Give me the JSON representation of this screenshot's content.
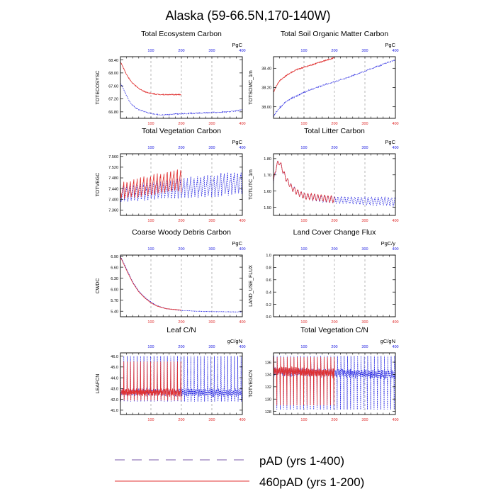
{
  "figure": {
    "title": "Alaska (59-66.5N,170-140W)",
    "legend": [
      {
        "label": "pAD (yrs 1-400)",
        "color": "#2020e0",
        "style": "dashed"
      },
      {
        "label": "460pAD (yrs 1-200)",
        "color": "#e03030",
        "style": "solid"
      }
    ],
    "top_axis_color": "#2020e0",
    "bottom_axis_color": "#e03030"
  },
  "chart_data": [
    {
      "type": "line",
      "title": "Total Ecosystem Carbon",
      "ylabel": "TOTECOSYSC",
      "units": "PgC",
      "xlim": [
        0,
        400
      ],
      "ylim": [
        66.6,
        68.5
      ],
      "yticks": [
        66.8,
        67.2,
        67.6,
        68.0,
        68.4
      ],
      "ytick_labels": [
        "66.80",
        "67.20",
        "67.60",
        "68.00",
        "68.40"
      ],
      "xticks_top": [
        100,
        200,
        300,
        400
      ],
      "xticks_bottom": [
        100,
        200,
        300,
        400
      ],
      "series": [
        {
          "name": "pAD (yrs 1-400)",
          "color": "#2020e0",
          "x": [
            0,
            10,
            20,
            30,
            40,
            50,
            60,
            70,
            80,
            100,
            120,
            140,
            160,
            200,
            250,
            300,
            350,
            400
          ],
          "y": [
            67.68,
            67.5,
            67.3,
            67.12,
            67.0,
            66.92,
            66.87,
            66.84,
            66.8,
            66.75,
            66.72,
            66.71,
            66.72,
            66.74,
            66.76,
            66.78,
            66.8,
            66.86
          ],
          "noise": 0.015
        },
        {
          "name": "460pAD (yrs 1-200)",
          "color": "#e03030",
          "x": [
            0,
            10,
            20,
            30,
            40,
            60,
            80,
            100,
            120,
            150,
            180,
            200
          ],
          "y": [
            68.34,
            68.15,
            67.95,
            67.8,
            67.68,
            67.52,
            67.42,
            67.37,
            67.34,
            67.33,
            67.33,
            67.33
          ],
          "noise": 0.015
        }
      ]
    },
    {
      "type": "line",
      "title": "Total Soil Organic Matter Carbon",
      "ylabel": "TOTSOMC_1m",
      "units": "PgC",
      "xlim": [
        0,
        400
      ],
      "ylim": [
        37.88,
        38.52
      ],
      "yticks": [
        38.0,
        38.2,
        38.4
      ],
      "ytick_labels": [
        "38.00",
        "38.20",
        "38.40"
      ],
      "xticks_top": [
        100,
        200,
        300,
        400
      ],
      "xticks_bottom": [
        100,
        200,
        300,
        400
      ],
      "series": [
        {
          "name": "pAD (yrs 1-400)",
          "color": "#2020e0",
          "x": [
            0,
            10,
            20,
            40,
            60,
            80,
            100,
            150,
            200,
            250,
            300,
            350,
            400
          ],
          "y": [
            37.9,
            37.95,
            37.99,
            38.05,
            38.09,
            38.12,
            38.15,
            38.21,
            38.26,
            38.31,
            38.37,
            38.43,
            38.49
          ],
          "noise": 0.006
        },
        {
          "name": "460pAD (yrs 1-200)",
          "color": "#e03030",
          "x": [
            0,
            10,
            20,
            40,
            60,
            80,
            100,
            120,
            150,
            180,
            200
          ],
          "y": [
            38.15,
            38.22,
            38.27,
            38.32,
            38.36,
            38.39,
            38.41,
            38.43,
            38.46,
            38.49,
            38.51
          ],
          "noise": 0.006
        }
      ]
    },
    {
      "type": "line",
      "title": "Total Vegetation Carbon",
      "ylabel": "TOTVEGC",
      "units": "PgC",
      "xlim": [
        0,
        400
      ],
      "ylim": [
        7.34,
        7.57
      ],
      "yticks": [
        7.36,
        7.4,
        7.44,
        7.48,
        7.52,
        7.56
      ],
      "ytick_labels": [
        "7.360",
        "7.400",
        "7.440",
        "7.480",
        "7.520",
        "7.560"
      ],
      "xticks_top": [
        100,
        200,
        300,
        400
      ],
      "xticks_bottom": [
        100,
        200,
        300,
        400
      ],
      "series": [
        {
          "name": "pAD (yrs 1-400)",
          "color": "#2020e0",
          "x": [
            0,
            400
          ],
          "y": [
            7.42,
            7.46
          ],
          "osc": {
            "period": 11,
            "amp": [
              0.06,
              0.085
            ],
            "sharp": true
          }
        },
        {
          "name": "460pAD (yrs 1-200)",
          "color": "#e03030",
          "x": [
            0,
            200
          ],
          "y": [
            7.43,
            7.47
          ],
          "osc": {
            "period": 11,
            "amp": [
              0.06,
              0.085
            ],
            "sharp": true
          }
        }
      ]
    },
    {
      "type": "line",
      "title": "Total Litter Carbon",
      "ylabel": "TOTLITC_1m",
      "units": "PgC",
      "xlim": [
        0,
        400
      ],
      "ylim": [
        1.45,
        1.83
      ],
      "yticks": [
        1.5,
        1.6,
        1.7,
        1.8
      ],
      "ytick_labels": [
        "1.50",
        "1.60",
        "1.70",
        "1.80"
      ],
      "xticks_top": [
        100,
        200,
        300,
        400
      ],
      "xticks_bottom": [
        100,
        200,
        300,
        400
      ],
      "series": [
        {
          "name": "pAD (yrs 1-400)",
          "color": "#2020e0",
          "x": [
            0,
            10,
            20,
            30,
            40,
            60,
            80,
            100,
            150,
            200,
            400
          ],
          "y": [
            1.65,
            1.76,
            1.78,
            1.73,
            1.68,
            1.62,
            1.59,
            1.57,
            1.555,
            1.545,
            1.535
          ],
          "osc": {
            "period": 11,
            "amp": [
              0.03,
              0.05
            ],
            "sharp": false
          }
        },
        {
          "name": "460pAD (yrs 1-200)",
          "color": "#e03030",
          "x": [
            0,
            10,
            20,
            30,
            40,
            60,
            80,
            100,
            150,
            200
          ],
          "y": [
            1.66,
            1.76,
            1.78,
            1.73,
            1.68,
            1.62,
            1.59,
            1.57,
            1.56,
            1.55
          ],
          "osc": {
            "period": 11,
            "amp": [
              0.03,
              0.04
            ],
            "sharp": false
          }
        }
      ]
    },
    {
      "type": "line",
      "title": "Coarse Woody Debris Carbon",
      "ylabel": "CWDC",
      "units": "PgC",
      "xlim": [
        0,
        400
      ],
      "ylim": [
        5.25,
        6.93
      ],
      "yticks": [
        5.4,
        5.7,
        6.0,
        6.3,
        6.6,
        6.9
      ],
      "ytick_labels": [
        "5.40",
        "5.70",
        "6.00",
        "6.30",
        "6.60",
        "6.90"
      ],
      "xticks_top": [
        100,
        200,
        300,
        400
      ],
      "xticks_bottom": [
        100,
        200,
        300,
        400
      ],
      "series": [
        {
          "name": "pAD (yrs 1-400)",
          "color": "#2020e0",
          "x": [
            0,
            20,
            40,
            60,
            80,
            100,
            120,
            150,
            200,
            250,
            300,
            400
          ],
          "y": [
            6.9,
            6.55,
            6.2,
            5.95,
            5.78,
            5.65,
            5.55,
            5.47,
            5.42,
            5.4,
            5.39,
            5.38
          ],
          "noise": 0.006
        },
        {
          "name": "460pAD (yrs 1-200)",
          "color": "#e03030",
          "x": [
            0,
            20,
            40,
            60,
            80,
            100,
            120,
            150,
            200
          ],
          "y": [
            6.88,
            6.52,
            6.18,
            5.93,
            5.76,
            5.63,
            5.54,
            5.47,
            5.43
          ],
          "noise": 0.006
        }
      ]
    },
    {
      "type": "line",
      "title": "Land Cover Change Flux",
      "ylabel": "LAND_USE_FLUX",
      "units": "PgC/y",
      "xlim": [
        0,
        400
      ],
      "ylim": [
        0.0,
        1.0
      ],
      "yticks": [
        0.0,
        0.2,
        0.4,
        0.6,
        0.8,
        1.0
      ],
      "ytick_labels": [
        "0.0",
        "0.2",
        "0.4",
        "0.6",
        "0.8",
        "1.0"
      ],
      "xticks_top": [
        100,
        200,
        300,
        400
      ],
      "xticks_bottom": [
        100,
        200,
        300,
        400
      ],
      "series": []
    },
    {
      "type": "line",
      "title": "Leaf C/N",
      "ylabel": "LEAFCN",
      "units": "gC/gN",
      "xlim": [
        0,
        400
      ],
      "ylim": [
        40.6,
        46.3
      ],
      "yticks": [
        41.0,
        42.0,
        43.0,
        44.0,
        45.0,
        46.0
      ],
      "ytick_labels": [
        "41.0",
        "42.0",
        "43.0",
        "44.0",
        "45.0",
        "46.0"
      ],
      "xticks_top": [
        100,
        200,
        300,
        400
      ],
      "xticks_bottom": [
        100,
        200,
        300,
        400
      ],
      "series": [
        {
          "name": "pAD (yrs 1-400)",
          "color": "#2020e0",
          "x": [
            0,
            400
          ],
          "y": [
            42.7,
            42.6
          ],
          "spike": {
            "period": 11,
            "high": 46.0,
            "low": 41.8,
            "base_amp": 0.6
          }
        },
        {
          "name": "460pAD (yrs 1-200)",
          "color": "#e03030",
          "x": [
            0,
            200
          ],
          "y": [
            42.7,
            42.6
          ],
          "spike": {
            "period": 11,
            "high": 45.5,
            "low": 41.9,
            "base_amp": 0.6
          }
        }
      ]
    },
    {
      "type": "line",
      "title": "Total Vegetation C/N",
      "ylabel": "TOTVEGCN",
      "units": "gC/gN",
      "xlim": [
        0,
        400
      ],
      "ylim": [
        127.5,
        137.5
      ],
      "yticks": [
        128,
        130,
        132,
        134,
        136
      ],
      "ytick_labels": [
        "128",
        "130",
        "132",
        "134",
        "136"
      ],
      "xticks_top": [
        100,
        200,
        300,
        400
      ],
      "xticks_bottom": [
        100,
        200,
        300,
        400
      ],
      "series": [
        {
          "name": "pAD (yrs 1-400)",
          "color": "#2020e0",
          "x": [
            0,
            400
          ],
          "y": [
            134.5,
            134.0
          ],
          "spike": {
            "period": 11,
            "high": 137.0,
            "low": 128.3,
            "base_amp": 1.2,
            "down": true
          }
        },
        {
          "name": "460pAD (yrs 1-200)",
          "color": "#e03030",
          "x": [
            0,
            200
          ],
          "y": [
            134.6,
            134.2
          ],
          "spike": {
            "period": 11,
            "high": 136.8,
            "low": 129.0,
            "base_amp": 1.2,
            "down": true
          }
        }
      ]
    }
  ]
}
